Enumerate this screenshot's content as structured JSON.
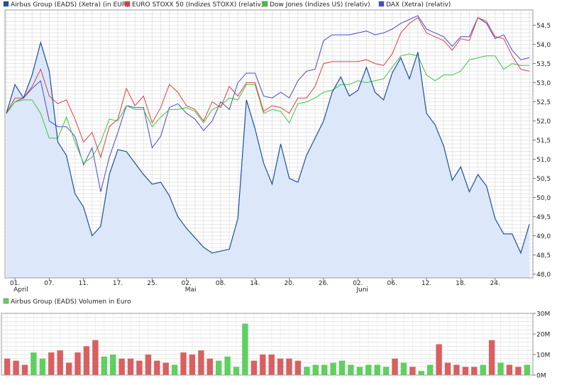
{
  "chart_data": [
    {
      "type": "line",
      "y_side": "right",
      "ylim": [
        47.9,
        54.9
      ],
      "y_ticks": [
        48.0,
        48.5,
        49.0,
        49.5,
        50.0,
        50.5,
        51.0,
        51.5,
        52.0,
        52.5,
        53.0,
        53.5,
        54.0,
        54.5
      ],
      "y_tick_labels": [
        "48,0",
        "48,5",
        "49,0",
        "49,5",
        "50,0",
        "50,5",
        "51,0",
        "51,5",
        "52,0",
        "52,5",
        "53,0",
        "53,5",
        "54,0",
        "54,5"
      ],
      "x_tick_labels": [
        "01.",
        "07.",
        "11.",
        "17.",
        "25.",
        "02.",
        "08.",
        "14.",
        "20.",
        "26.",
        "02.",
        "06.",
        "12.",
        "18.",
        "24."
      ],
      "x_tick_index": [
        1,
        5,
        9,
        13,
        17,
        21,
        25,
        29,
        33,
        37,
        41,
        45,
        49,
        53,
        57
      ],
      "month_labels": [
        {
          "label": "April",
          "index": 1
        },
        {
          "label": "Mai",
          "index": 21
        },
        {
          "label": "Juni",
          "index": 41
        }
      ],
      "grid": true,
      "legend": "top",
      "series": [
        {
          "name": "Airbus Group (EADS) (Xetra) (in EUR)",
          "color": "#1e4f9e",
          "fill": "#dce8fa",
          "values": [
            52.2,
            52.95,
            52.6,
            53.2,
            54.05,
            53.3,
            51.45,
            51.1,
            50.1,
            49.75,
            49.0,
            49.25,
            50.6,
            51.25,
            51.2,
            50.9,
            50.6,
            50.35,
            50.4,
            50.05,
            49.5,
            49.2,
            48.95,
            48.7,
            48.55,
            48.6,
            48.65,
            49.45,
            52.55,
            51.8,
            50.9,
            50.35,
            51.4,
            50.5,
            50.4,
            51.1,
            51.55,
            52.0,
            52.75,
            53.15,
            52.65,
            52.8,
            53.4,
            52.75,
            52.55,
            53.25,
            53.65,
            53.1,
            53.8,
            52.2,
            51.9,
            51.35,
            50.45,
            50.8,
            50.15,
            50.6,
            50.3,
            49.45,
            49.05,
            49.05,
            48.55,
            49.3
          ]
        },
        {
          "name": "EURO STOXX 50 (Indizes STOXX) (relativ)",
          "color": "#d94040",
          "values": [
            52.2,
            52.6,
            52.6,
            52.9,
            53.35,
            52.65,
            52.45,
            52.55,
            52.05,
            51.45,
            51.7,
            51.05,
            51.85,
            52.05,
            52.85,
            52.4,
            52.65,
            51.95,
            52.35,
            52.95,
            52.75,
            52.4,
            52.3,
            52.0,
            52.5,
            52.35,
            52.9,
            52.65,
            53.0,
            53.0,
            52.25,
            52.4,
            52.35,
            52.2,
            52.6,
            52.6,
            52.9,
            53.5,
            53.55,
            53.55,
            53.55,
            53.55,
            53.6,
            53.5,
            53.45,
            53.75,
            54.3,
            54.55,
            54.7,
            54.3,
            54.2,
            54.1,
            53.85,
            54.15,
            54.1,
            54.7,
            54.6,
            54.2,
            54.15,
            53.7,
            53.35,
            53.3
          ]
        },
        {
          "name": "Dow Jones (Indizes US) (relativ)",
          "color": "#3ec43e",
          "values": [
            52.2,
            52.5,
            52.55,
            52.55,
            52.2,
            51.55,
            51.55,
            52.1,
            51.45,
            50.9,
            51.05,
            51.45,
            52.05,
            52.0,
            52.4,
            52.3,
            52.3,
            51.85,
            52.1,
            52.3,
            52.3,
            52.35,
            52.25,
            51.95,
            52.3,
            52.4,
            52.6,
            52.55,
            52.95,
            52.95,
            52.2,
            52.3,
            52.25,
            51.95,
            52.45,
            52.5,
            52.6,
            52.75,
            52.8,
            52.95,
            52.95,
            53.05,
            53.0,
            53.05,
            53.1,
            53.4,
            53.7,
            53.75,
            53.7,
            53.2,
            53.05,
            53.2,
            53.2,
            53.3,
            53.6,
            53.65,
            53.7,
            53.7,
            53.35,
            53.5,
            53.45,
            53.45
          ]
        },
        {
          "name": "DAX (Xetra) (relativ)",
          "color": "#4848c8",
          "values": [
            52.2,
            52.5,
            52.6,
            52.85,
            53.05,
            52.0,
            51.85,
            51.85,
            51.6,
            50.85,
            51.3,
            50.15,
            51.05,
            51.7,
            52.4,
            52.35,
            52.35,
            51.3,
            51.6,
            52.35,
            52.45,
            52.2,
            52.05,
            51.75,
            52.0,
            52.5,
            52.3,
            53.0,
            53.25,
            53.25,
            52.65,
            52.6,
            52.75,
            52.6,
            53.05,
            53.3,
            53.35,
            54.1,
            54.25,
            54.25,
            54.25,
            54.3,
            54.35,
            54.25,
            54.3,
            54.4,
            54.55,
            54.65,
            54.75,
            54.4,
            54.3,
            54.2,
            53.95,
            54.2,
            54.2,
            54.7,
            54.55,
            54.15,
            54.25,
            53.85,
            53.6,
            53.65
          ]
        }
      ]
    },
    {
      "type": "bar",
      "title": "Airbus Group (EADS) Volumen in Euro",
      "ylim": [
        0,
        30
      ],
      "y_ticks": [
        0,
        10,
        20,
        30
      ],
      "y_tick_labels": [
        "0M",
        "10M",
        "20M",
        "30M"
      ],
      "up_color": "#5fd05f",
      "down_color": "#d96060",
      "values": [
        8,
        7,
        5,
        11,
        8,
        11,
        12,
        6,
        11,
        14,
        17,
        9,
        10,
        8,
        8,
        7,
        10,
        7,
        6,
        5,
        11,
        10,
        12,
        8,
        7,
        9,
        4,
        25,
        7,
        10,
        10,
        8,
        8,
        7,
        4,
        5,
        5,
        6,
        7,
        5,
        4,
        5,
        5,
        4,
        8,
        6,
        4,
        2,
        5,
        15,
        6,
        5,
        4,
        4,
        5,
        17,
        6,
        5,
        4,
        5
      ],
      "up": [
        false,
        false,
        false,
        true,
        true,
        false,
        false,
        false,
        false,
        false,
        false,
        true,
        true,
        false,
        false,
        false,
        false,
        false,
        false,
        true,
        false,
        false,
        false,
        false,
        true,
        true,
        true,
        true,
        false,
        false,
        false,
        false,
        false,
        false,
        true,
        true,
        true,
        true,
        true,
        true,
        true,
        true,
        true,
        true,
        false,
        true,
        false,
        true,
        true,
        false,
        false,
        false,
        false,
        false,
        true,
        false,
        true,
        false,
        false,
        true
      ]
    }
  ]
}
